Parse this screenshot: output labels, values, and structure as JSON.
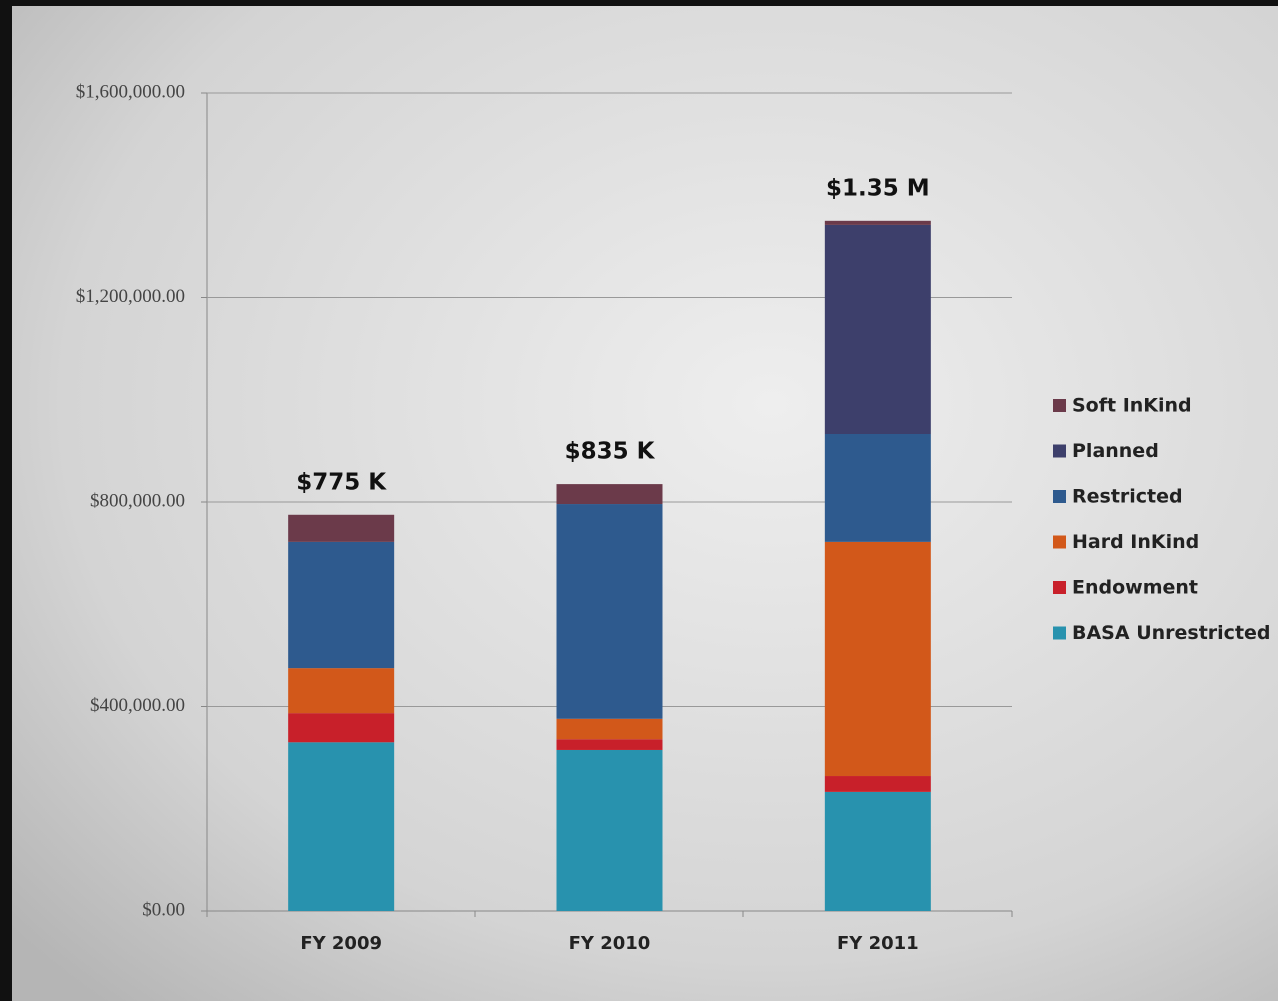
{
  "chart_data": {
    "type": "stacked_bar",
    "categories": [
      "FY 2009",
      "FY 2010",
      "FY 2011"
    ],
    "series": [
      {
        "name": "BASA Unrestricted",
        "color": "#2892ae",
        "values": [
          330000,
          315000,
          233000
        ]
      },
      {
        "name": "Endowment",
        "color": "#c8202a",
        "values": [
          57000,
          21000,
          31000
        ]
      },
      {
        "name": "Hard InKind",
        "color": "#d2581a",
        "values": [
          88000,
          40000,
          458000
        ]
      },
      {
        "name": "Restricted",
        "color": "#2e5a8e",
        "values": [
          247000,
          420000,
          211000
        ]
      },
      {
        "name": "Planned",
        "color": "#3d3f6b",
        "values": [
          0,
          0,
          409000
        ]
      },
      {
        "name": "Soft InKind",
        "color": "#6b3a4a",
        "values": [
          53000,
          39000,
          8000
        ]
      }
    ],
    "totals": {
      "values": [
        775000,
        835000,
        1350000
      ],
      "value_labels": [
        "$775 K",
        "$835 K",
        "$1.35 M"
      ]
    },
    "ylim": [
      0,
      1600000
    ],
    "yticks": [
      {
        "value": 0,
        "label": "$0.00"
      },
      {
        "value": 400000,
        "label": "$400,000.00"
      },
      {
        "value": 800000,
        "label": "$800,000.00"
      },
      {
        "value": 1200000,
        "label": "$1,200,000.00"
      },
      {
        "value": 1600000,
        "label": "$1,600,000.00"
      }
    ],
    "grid": true,
    "legend": "right"
  }
}
